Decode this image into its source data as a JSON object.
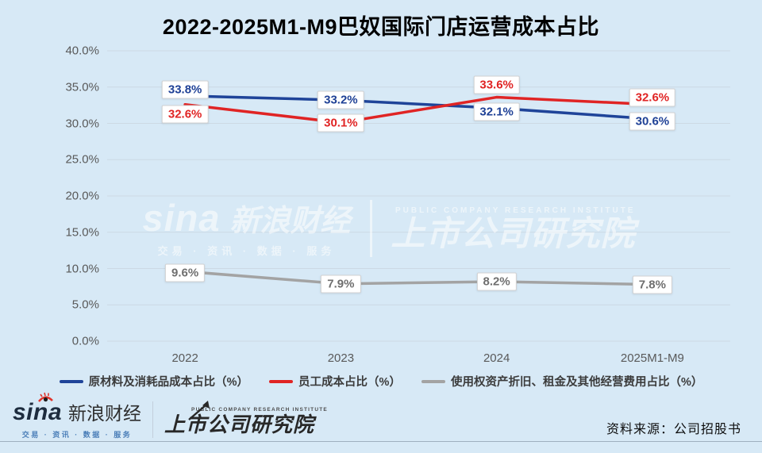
{
  "title": "2022-2025M1-M9巴奴国际门店运营成本占比",
  "chart_data": {
    "type": "line",
    "categories": [
      "2022",
      "2023",
      "2024",
      "2025M1-M9"
    ],
    "series": [
      {
        "name": "原材料及消耗品成本占比（%）",
        "color": "#1f4499",
        "label_color": "#1f4196",
        "values": [
          33.8,
          33.2,
          32.1,
          30.6
        ]
      },
      {
        "name": "员工成本占比（%）",
        "color": "#e02424",
        "label_color": "#e02424",
        "values": [
          32.6,
          30.1,
          33.6,
          32.6
        ]
      },
      {
        "name": "使用权资产折旧、租金及其他经营费用占比（%）",
        "color": "#a3a3a3",
        "label_color": "#6f6f6f",
        "values": [
          9.6,
          7.9,
          8.2,
          7.8
        ]
      }
    ],
    "ylim": [
      0,
      40
    ],
    "y_ticks": [
      "40.0%",
      "35.0%",
      "30.0%",
      "25.0%",
      "20.0%",
      "15.0%",
      "10.0%",
      "5.0%",
      "0.0%"
    ],
    "grid": true,
    "legend_position": "bottom"
  },
  "colors": {
    "background": "#d7e9f6",
    "gridline": "#ccd9e4",
    "axis_text": "#595959",
    "label_box_border": "#d2d2d2"
  },
  "watermark": {
    "script": "sina",
    "brand": "新浪财经",
    "tagline": "交易 · 资讯 · 数据 · 服务",
    "institute_en": "PUBLIC COMPANY RESEARCH INSTITUTE",
    "institute": "上市公司研究院"
  },
  "footer": {
    "script": "sina",
    "brand": "新浪财经",
    "tagline": "交易 · 资讯 · 数据 · 服务",
    "institute_en": "PUBLIC COMPANY RESEARCH INSTITUTE",
    "institute": "上市公司研究院",
    "source": "资料来源：公司招股书"
  }
}
